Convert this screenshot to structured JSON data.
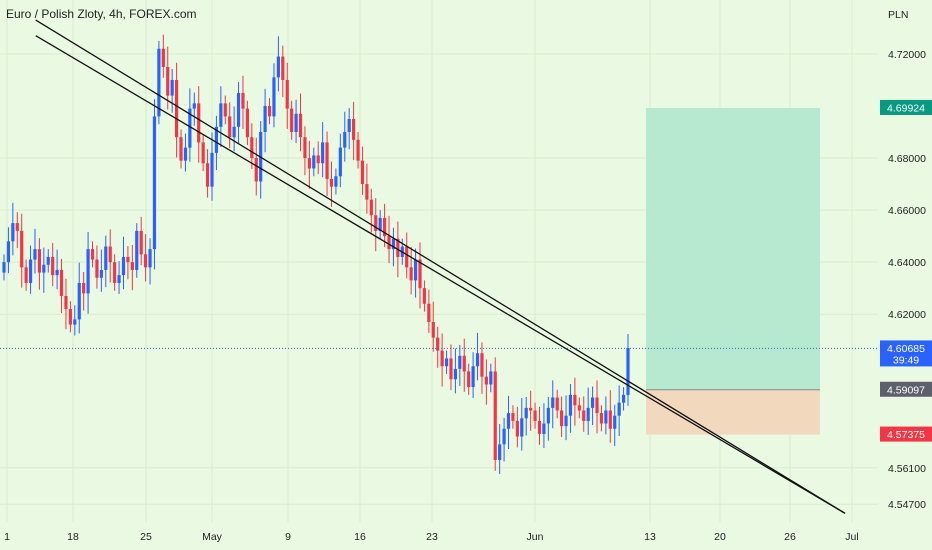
{
  "header": {
    "title": "Euro / Polish Zloty, 4h, FOREX.com"
  },
  "colors": {
    "background": "#eaf9e2",
    "up_candle": "#2962ff",
    "down_candle": "#f23645",
    "profit_zone": "#b6e9cf",
    "loss_zone": "#f2d9bd",
    "trend_line": "#111111",
    "current_price_line": "#2962ff"
  },
  "chart_data": {
    "type": "candlestick",
    "title": "Euro / Polish Zloty, 4h, FOREX.com",
    "currency_label": "PLN",
    "ylim": [
      4.544,
      4.7315
    ],
    "y_ticks": [
      4.72,
      4.68,
      4.66,
      4.64,
      4.62,
      4.561,
      4.547
    ],
    "x_ticks": [
      "1",
      "18",
      "25",
      "May",
      "9",
      "16",
      "23",
      "Jun",
      "13",
      "20",
      "26",
      "Jul"
    ],
    "grid": true,
    "candles_close": [
      4.64,
      4.648,
      4.655,
      4.652,
      4.638,
      4.632,
      4.641,
      4.645,
      4.636,
      4.639,
      4.642,
      4.635,
      4.637,
      4.627,
      4.622,
      4.616,
      4.618,
      4.632,
      4.628,
      4.645,
      4.641,
      4.634,
      4.637,
      4.646,
      4.64,
      4.632,
      4.635,
      4.642,
      4.64,
      4.637,
      4.652,
      4.643,
      4.638,
      4.645,
      4.696,
      4.722,
      4.715,
      4.704,
      4.71,
      4.688,
      4.679,
      4.684,
      4.699,
      4.701,
      4.686,
      4.678,
      4.669,
      4.682,
      4.692,
      4.701,
      4.696,
      4.688,
      4.692,
      4.705,
      4.699,
      4.688,
      4.68,
      4.671,
      4.69,
      4.7,
      4.696,
      4.711,
      4.719,
      4.71,
      4.699,
      4.69,
      4.697,
      4.688,
      4.68,
      4.676,
      4.681,
      4.678,
      4.686,
      4.672,
      4.669,
      4.673,
      4.684,
      4.69,
      4.695,
      4.687,
      4.679,
      4.67,
      4.664,
      4.658,
      4.652,
      4.657,
      4.65,
      4.645,
      4.649,
      4.642,
      4.646,
      4.638,
      4.633,
      4.641,
      4.63,
      4.624,
      4.617,
      4.611,
      4.606,
      4.6,
      4.603,
      4.595,
      4.599,
      4.604,
      4.598,
      4.592,
      4.6,
      4.605,
      4.596,
      4.593,
      4.598,
      4.564,
      4.57,
      4.576,
      4.582,
      4.579,
      4.573,
      4.58,
      4.584,
      4.583,
      4.579,
      4.574,
      4.578,
      4.584,
      4.588,
      4.583,
      4.577,
      4.581,
      4.589,
      4.585,
      4.583,
      4.579,
      4.584,
      4.588,
      4.582,
      4.578,
      4.583,
      4.576,
      4.581,
      4.586,
      4.589,
      4.607
    ],
    "trend_lines": [
      {
        "start": {
          "date": "Apr 4",
          "value": 4.733
        },
        "end": {
          "date": "Jun 29",
          "value": 4.5435
        }
      },
      {
        "start": {
          "date": "Apr 4",
          "value": 4.727
        },
        "end": {
          "date": "Jun 29",
          "value": 4.5435
        }
      }
    ],
    "position": {
      "type": "long",
      "target": 4.69924,
      "entry": 4.59097,
      "stop": 4.57375
    },
    "current_price": 4.60685,
    "countdown": "39:49"
  }
}
